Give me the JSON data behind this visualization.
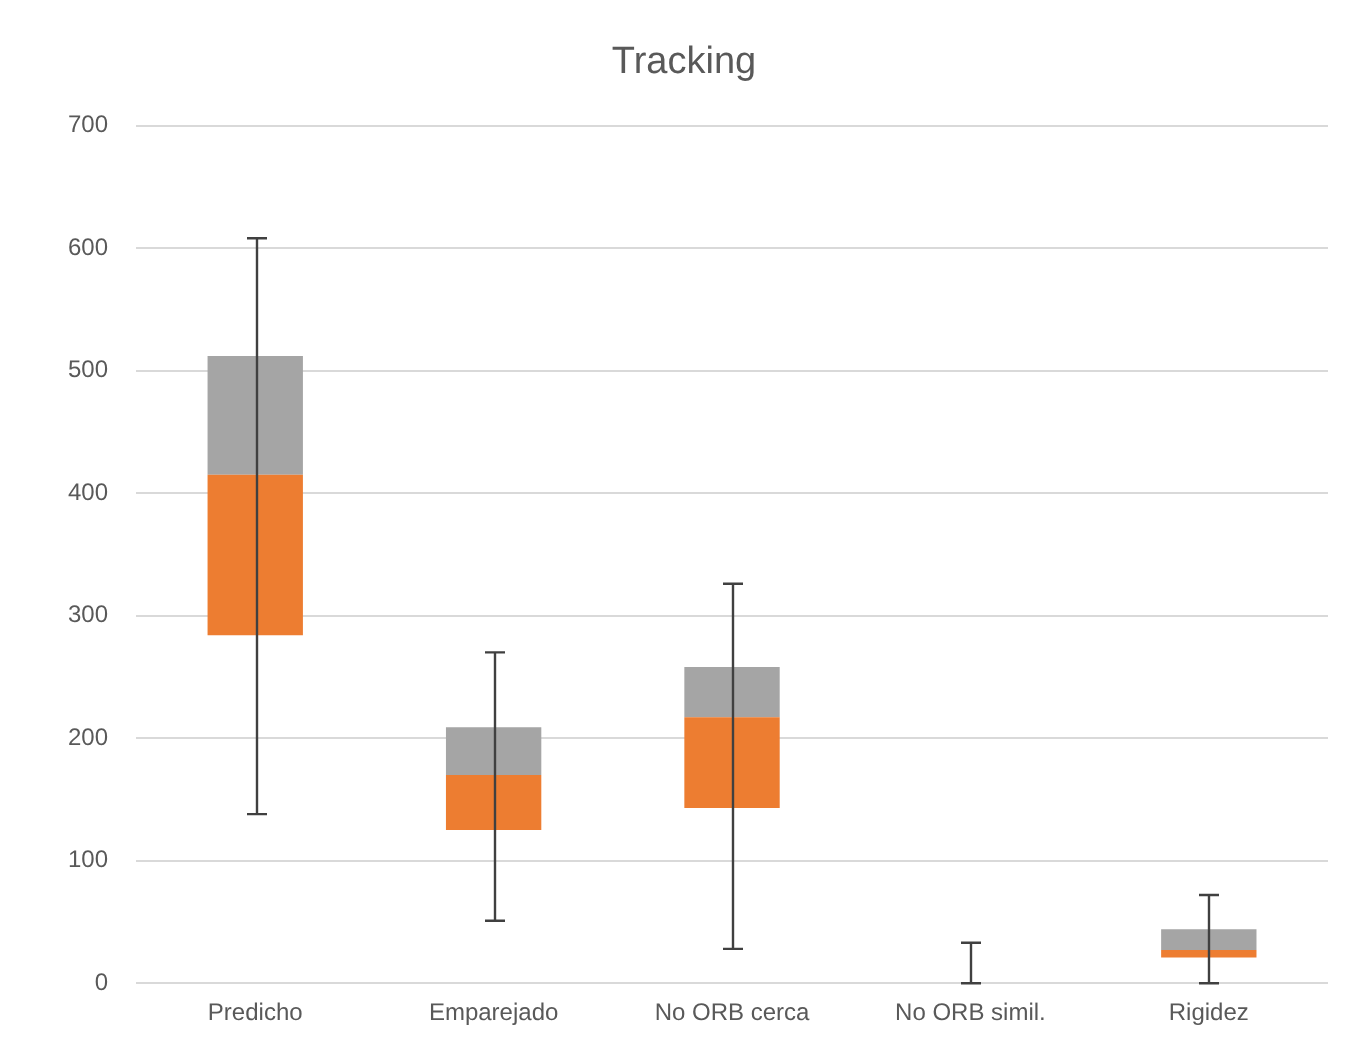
{
  "chart_data": {
    "type": "box",
    "title": "Tracking",
    "categories": [
      "Predicho",
      "Emparejado",
      "No ORB cerca",
      "No ORB simil.",
      "Rigidez"
    ],
    "series": [
      {
        "colors": [
          [
            "#ed7d31",
            "#a5a5a5"
          ],
          [
            "#ed7d31",
            "#a5a5a5"
          ],
          [
            "#ed7d31",
            "#a5a5a5"
          ],
          [
            "#ed7d31",
            "#a5a5a5"
          ],
          [
            "#ed7d31",
            "#a5a5a5"
          ]
        ],
        "boxes": [
          {
            "low": 138,
            "q1": 284,
            "median": 415,
            "q3": 512,
            "high": 608
          },
          {
            "low": 51,
            "q1": 125,
            "median": 170,
            "q3": 209,
            "high": 270
          },
          {
            "low": 28,
            "q1": 143,
            "median": 217,
            "q3": 258,
            "high": 326
          },
          {
            "low": 0,
            "q1": 0,
            "median": 0,
            "q3": 0,
            "high": 33
          },
          {
            "low": 0,
            "q1": 21,
            "median": 27,
            "q3": 44,
            "high": 72
          }
        ]
      }
    ],
    "ylim": [
      0,
      700
    ],
    "yticks": [
      0,
      100,
      200,
      300,
      400,
      500,
      600,
      700
    ],
    "grid": "y",
    "legend": false
  }
}
